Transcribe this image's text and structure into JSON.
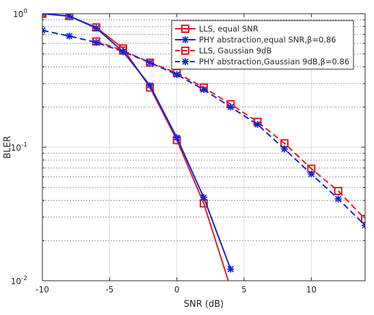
{
  "chart_data": {
    "type": "line",
    "title": "",
    "xlabel": "SNR (dB)",
    "ylabel": "BLER",
    "xscale": "linear",
    "yscale": "log",
    "xlim": [
      -10,
      14
    ],
    "ylim": [
      0.01,
      1
    ],
    "grid": "on",
    "legend_position": "top-right",
    "x_ticks": [
      "-10",
      "-5",
      "0",
      "5",
      "10"
    ],
    "x_tick_values": [
      -10,
      -5,
      0,
      5,
      10
    ],
    "y_tick_labels": [
      {
        "base": "10",
        "exp": "-2",
        "value": 0.01
      },
      {
        "base": "10",
        "exp": "-1",
        "value": 0.1
      },
      {
        "base": "10",
        "exp": "0",
        "value": 1
      }
    ],
    "series": [
      {
        "name": "LLS, equal SNR",
        "color": "#e31a1c",
        "line": "solid",
        "marker": "square",
        "x": [
          -10,
          -8,
          -6,
          -4,
          -2,
          0,
          2,
          4
        ],
        "y": [
          1.0,
          0.96,
          0.79,
          0.55,
          0.28,
          0.113,
          0.038,
          0.0088
        ]
      },
      {
        "name": "PHY abstraction,equal SNR,β=0.86",
        "color": "#0b24e0",
        "line": "solid",
        "marker": "star",
        "x": [
          -10,
          -8,
          -6,
          -4,
          -2,
          0,
          2,
          4
        ],
        "y": [
          1.0,
          0.96,
          0.78,
          0.52,
          0.29,
          0.118,
          0.042,
          0.0122
        ]
      },
      {
        "name": "LLS, Gaussian 9dB",
        "color": "#e31a1c",
        "line": "dashed",
        "marker": "square",
        "x": [
          -6,
          -4,
          -2,
          0,
          2,
          4,
          6,
          8,
          10,
          12,
          14
        ],
        "y": [
          0.62,
          0.53,
          0.43,
          0.36,
          0.28,
          0.21,
          0.155,
          0.107,
          0.069,
          0.047,
          0.029
        ]
      },
      {
        "name": "PHY abstraction,Gaussian 9dB,β=0.86",
        "color": "#0b24e0",
        "line": "dashed",
        "marker": "star",
        "x": [
          -10,
          -8,
          -6,
          -4,
          -2,
          0,
          2,
          4,
          6,
          8,
          10,
          12,
          14
        ],
        "y": [
          0.75,
          0.68,
          0.61,
          0.52,
          0.43,
          0.35,
          0.27,
          0.2,
          0.148,
          0.097,
          0.063,
          0.041,
          0.026
        ]
      }
    ]
  }
}
